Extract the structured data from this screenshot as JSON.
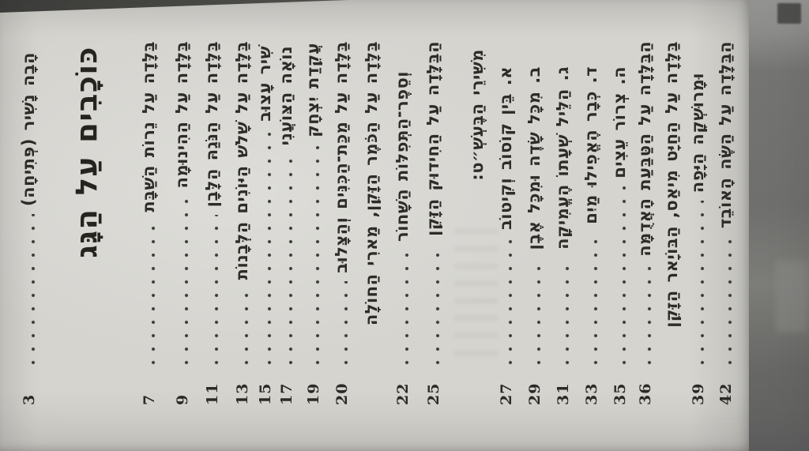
{
  "colors": {
    "paper": "#d5d4cf",
    "ink": "#2e2c29",
    "backdrop": "#747472"
  },
  "toc": {
    "entries": [
      {
        "label": "הָבָה נָשִׁיר (פְּתִיחָה)",
        "page": "3",
        "type": "entry"
      },
      {
        "label": "כּוֹכָבִים עַל הַגָּג",
        "page": null,
        "type": "title"
      },
      {
        "label": "בַּלָּדָה עַל נֵרוֹת הַשַּׁבָּת",
        "page": "7",
        "type": "entry"
      },
      {
        "label": "בַּלָּדָה עַל הַהִינוּמָה",
        "page": "9",
        "type": "entry"
      },
      {
        "label": "בַּלָּדָה עַל הַנֹּגַהּ הַלָּבָן",
        "page": "11",
        "type": "entry"
      },
      {
        "label": "בַּלָּדָה עַל שָׁלֹשׁ הַיּוֹנִים הַלְּבָנוֹת",
        "page": "13",
        "type": "entry"
      },
      {
        "label": "שִׁיר עָצוּב",
        "page": "15",
        "type": "entry"
      },
      {
        "label": "נוֹאָה הַצּוֹעֲנִי",
        "page": "17",
        "type": "entry"
      },
      {
        "label": "עֲקֵדַת יִצְחָק",
        "page": "19",
        "type": "entry"
      },
      {
        "label": "בַּלָּדָה עַל מַכַּת־הַכִּנִּים וְהַצָּלוּב",
        "page": "20",
        "type": "entry"
      },
      {
        "label": "בַּלָּדָה עַל הַכֹּמֶר הַזָּקֵן, מַארִי הַחוֹלָה",
        "page": null,
        "type": "entry"
      },
      {
        "label": "וְסֵפֶר־הַתְּפִלּוֹת הַשָּׁחוֹר",
        "page": "22",
        "type": "entry"
      },
      {
        "label": "הַבַּלָּדָה עַל הַחִידוּק הַזָּקֵן",
        "page": "25",
        "type": "entry"
      },
      {
        "label": "מִשִּׁירֵי הַבֶּעְשְׁ״ט:",
        "page": null,
        "type": "header"
      },
      {
        "label": "א. בֵּין קוֹסוֹב וְקִיטוֹב",
        "page": "27",
        "type": "entry"
      },
      {
        "label": "ב. מִכָּל שָׂדֶה וּמִכָּל אֶבֶן",
        "page": "29",
        "type": "entry"
      },
      {
        "label": "ג. הַלֵּיל שְׁעָתוֹ הֶעֱמִיקָה",
        "page": "31",
        "type": "entry"
      },
      {
        "label": "ד. כְּבָר הֶאֱפִילוּ מַיִם",
        "page": "33",
        "type": "entry"
      },
      {
        "label": "ה. צְרוֹר עֵצִים",
        "page": "35",
        "type": "entry"
      },
      {
        "label": "הַבַּלָּדָה עַל הַטַּבַּעַת הָאֲדֻמָּה",
        "page": "36",
        "type": "entry"
      },
      {
        "label": "בַּלָּדָה עַל הַחַיָּט מִיאַס, הַבּוֹיָאר הַזָּקֵן",
        "page": null,
        "type": "entry"
      },
      {
        "label": "וּמָרוּשְׁקָה הַיָּפָה",
        "page": "39",
        "type": "entry"
      },
      {
        "label": "הַבַּלָּדָה עַל הַשֶּׂה הָאוֹבֵד",
        "page": "42",
        "type": "entry"
      }
    ]
  }
}
